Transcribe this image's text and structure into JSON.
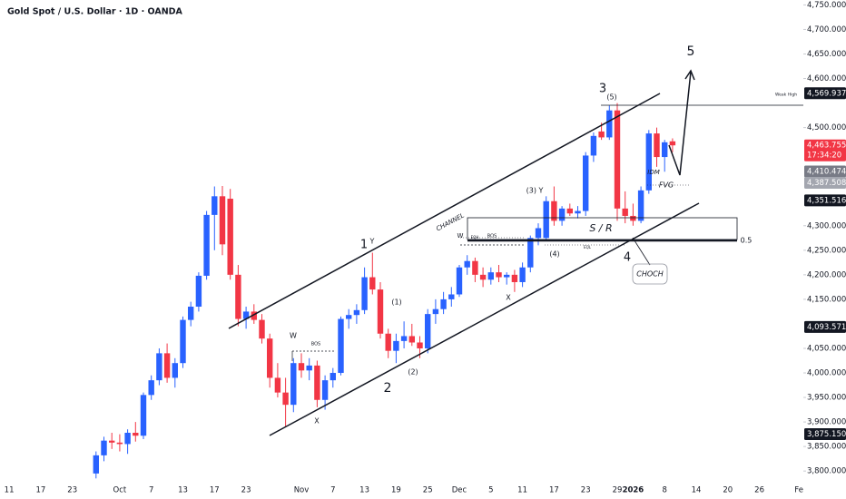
{
  "chart_data": {
    "type": "candlestick",
    "title": "Gold Spot / U.S. Dollar · 1D · OANDA",
    "categories": [
      "11",
      null,
      null,
      null,
      "17",
      null,
      null,
      null,
      "23",
      null,
      null,
      null,
      null,
      null,
      "Oct",
      null,
      null,
      null,
      "7",
      null,
      null,
      null,
      "13",
      null,
      null,
      null,
      "17",
      null,
      null,
      null,
      "23",
      null,
      null,
      null,
      null,
      null,
      null,
      "Nov",
      null,
      null,
      null,
      "7",
      null,
      null,
      null,
      "13",
      null,
      null,
      null,
      "19",
      null,
      null,
      null,
      "25",
      null,
      null,
      null,
      "Dec",
      null,
      null,
      null,
      "5",
      null,
      null,
      null,
      "11",
      null,
      null,
      null,
      "17",
      null,
      null,
      null,
      "23",
      null,
      null,
      null,
      "29",
      null,
      "2026",
      null,
      null,
      null,
      "8",
      null,
      null,
      null,
      "14",
      null,
      null,
      null,
      "20",
      null,
      null,
      null,
      "26",
      null,
      null,
      null,
      null,
      "Fe"
    ],
    "open": [
      null,
      null,
      null,
      null,
      null,
      null,
      null,
      null,
      null,
      null,
      null,
      3795,
      3832,
      3862,
      3858,
      3855,
      3878,
      3872,
      3955,
      3985,
      4040,
      3990,
      4020,
      4108,
      4135,
      4198,
      4322,
      4360,
      4355,
      4200,
      4110,
      4125,
      4108,
      4070,
      3990,
      3960,
      3935,
      4020,
      4005,
      4015,
      3945,
      3985,
      4000,
      4110,
      4118,
      4128,
      4195,
      4170,
      4080,
      4045,
      4065,
      4075,
      4062,
      4050,
      4120,
      4130,
      4150,
      4160,
      4215,
      4228,
      4200,
      4190,
      4205,
      4195,
      4200,
      4185,
      4215,
      4275,
      4275,
      4350,
      4310,
      4335,
      4325,
      4330,
      4443,
      4492,
      4480,
      4535,
      4335,
      4320,
      4310,
      4372,
      4488,
      4440,
      4472,
      null,
      null,
      null,
      null,
      null,
      null,
      null,
      null,
      null,
      null,
      null,
      null,
      null,
      null,
      null,
      null
    ],
    "high": [
      null,
      null,
      null,
      null,
      null,
      null,
      null,
      null,
      null,
      null,
      null,
      3840,
      3870,
      3878,
      3875,
      3885,
      3900,
      3960,
      3995,
      4050,
      4060,
      4030,
      4115,
      4145,
      4205,
      4330,
      4380,
      4381,
      4375,
      4220,
      4135,
      4140,
      4120,
      4080,
      4020,
      3990,
      4030,
      4040,
      4030,
      4025,
      3995,
      4010,
      4115,
      4130,
      4140,
      4215,
      4245,
      4185,
      4090,
      4080,
      4105,
      4100,
      4075,
      4130,
      4150,
      4165,
      4175,
      4220,
      4240,
      4235,
      4215,
      4215,
      4220,
      4205,
      4210,
      4225,
      4280,
      4305,
      4360,
      4380,
      4340,
      4345,
      4340,
      4450,
      4490,
      4510,
      4545,
      4550,
      4370,
      4345,
      4380,
      4495,
      4500,
      4475,
      4478,
      null,
      null,
      null,
      null,
      null,
      null,
      null,
      null,
      null,
      null,
      null,
      null,
      null,
      null,
      null,
      null
    ],
    "low": [
      null,
      null,
      null,
      null,
      null,
      null,
      null,
      null,
      null,
      null,
      null,
      3785,
      3820,
      3845,
      3840,
      3835,
      3860,
      3865,
      3945,
      3975,
      3980,
      3970,
      4010,
      4095,
      4125,
      4190,
      4250,
      4240,
      4190,
      4095,
      4090,
      4100,
      4060,
      3970,
      3950,
      3890,
      3920,
      3990,
      3985,
      3930,
      3925,
      3970,
      3995,
      4090,
      4100,
      4120,
      4160,
      4070,
      4030,
      4020,
      4050,
      4055,
      4030,
      4040,
      4100,
      4120,
      4135,
      4155,
      4200,
      4185,
      4175,
      4180,
      4185,
      4180,
      4165,
      4175,
      4205,
      4260,
      4270,
      4300,
      4300,
      4320,
      4315,
      4320,
      4430,
      4475,
      4475,
      4310,
      4305,
      4300,
      4305,
      4365,
      4420,
      4410,
      4450,
      null,
      null,
      null,
      null,
      null,
      null,
      null,
      null,
      null,
      null,
      null,
      null,
      null,
      null,
      null,
      null
    ],
    "close": [
      null,
      null,
      null,
      null,
      null,
      null,
      null,
      null,
      null,
      null,
      null,
      3832,
      3862,
      3858,
      3855,
      3878,
      3872,
      3955,
      3985,
      4040,
      3990,
      4020,
      4108,
      4135,
      4198,
      4322,
      4360,
      4262,
      4200,
      4110,
      4125,
      4108,
      4070,
      3990,
      3960,
      3935,
      4020,
      4005,
      4015,
      3945,
      3985,
      4000,
      4110,
      4118,
      4128,
      4195,
      4170,
      4080,
      4045,
      4065,
      4075,
      4062,
      4050,
      4120,
      4130,
      4150,
      4160,
      4215,
      4228,
      4200,
      4190,
      4205,
      4195,
      4200,
      4185,
      4215,
      4275,
      4295,
      4350,
      4310,
      4335,
      4325,
      4330,
      4443,
      4483,
      4480,
      4535,
      4335,
      4320,
      4310,
      4372,
      4488,
      4440,
      4470,
      4463.755,
      null,
      null,
      null,
      null,
      null,
      null,
      null,
      null,
      null,
      null,
      null,
      null,
      null,
      null,
      null,
      null
    ],
    "up_color": "#2962ff",
    "down_color": "#f23645",
    "ylim": [
      3780,
      4760
    ],
    "yticks": [
      {
        "value": 4750,
        "label": "4,750.000"
      },
      {
        "value": 4700,
        "label": "4,700.000"
      },
      {
        "value": 4650,
        "label": "4,650.000"
      },
      {
        "value": 4600,
        "label": "4,600.000"
      },
      {
        "value": 4500,
        "label": "4,500.000"
      },
      {
        "value": 4300,
        "label": "4,300.000"
      },
      {
        "value": 4250,
        "label": "4,250.000"
      },
      {
        "value": 4200,
        "label": "4,200.000"
      },
      {
        "value": 4150,
        "label": "4,150.000"
      },
      {
        "value": 4050,
        "label": "4,050.000"
      },
      {
        "value": 4000,
        "label": "4,000.000"
      },
      {
        "value": 3950,
        "label": "3,950.000"
      },
      {
        "value": 3900,
        "label": "3,900.000"
      },
      {
        "value": 3850,
        "label": "3,850.000"
      },
      {
        "value": 3800,
        "label": "3,800.000"
      }
    ],
    "price_tags": [
      {
        "value": 4569.937,
        "label": "4,569.937",
        "color": "#131722"
      },
      {
        "value": 4463.755,
        "label": "4,463.755",
        "color": "#f23645",
        "countdown": "17:34:20"
      },
      {
        "value": 4410.474,
        "label": "4,410.474",
        "color": "#787b86"
      },
      {
        "value": 4387.508,
        "label": "4,387.508",
        "color": "#a3a6af"
      },
      {
        "value": 4351.516,
        "label": "4,351.516",
        "color": "#131722"
      },
      {
        "value": 4093.571,
        "label": "4,093.571",
        "color": "#131722"
      },
      {
        "value": 3875.15,
        "label": "3,875.150",
        "color": "#131722"
      }
    ],
    "annotations": [
      "5",
      "3",
      "(5)",
      "1",
      "Y",
      "(1)",
      "(2)",
      "2",
      "X",
      "W",
      "BOS",
      "(3) Y",
      "W",
      "EQH",
      "BOS",
      "X",
      "(4)",
      "4",
      "CHANNEL",
      "S / R",
      "CHOCH",
      "IDM",
      "FVG",
      "0.5",
      "Weak High",
      "EQL"
    ]
  }
}
